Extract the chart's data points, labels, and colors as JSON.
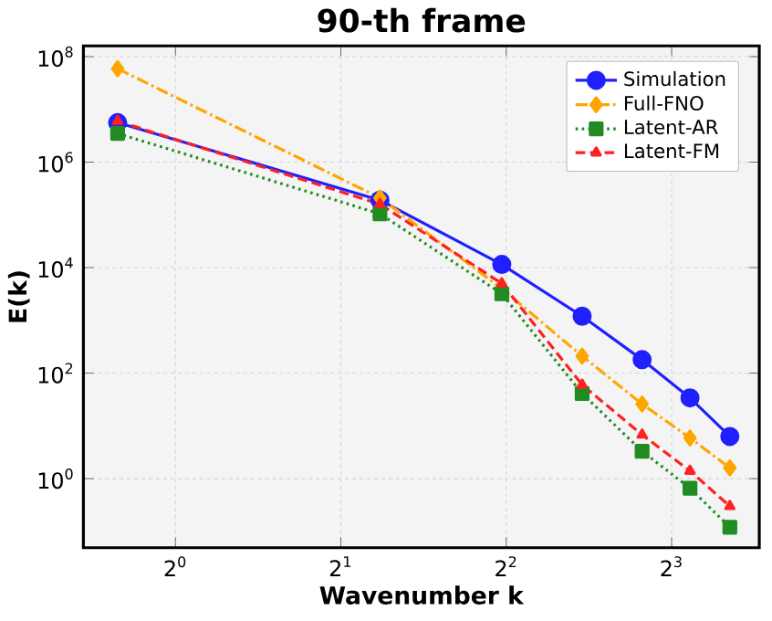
{
  "chart_data": {
    "type": "line",
    "title": "90-th frame",
    "xlabel": "Wavenumber k",
    "ylabel": "E(k)",
    "x": [
      0.785,
      2.356,
      3.927,
      5.498,
      7.069,
      8.639,
      10.21
    ],
    "series": [
      {
        "name": "Simulation",
        "color": "#1f1fff",
        "marker": "circle",
        "line_style": "solid",
        "values": [
          5600000,
          190000,
          11500,
          1200,
          180,
          34,
          6.3
        ]
      },
      {
        "name": "Full-FNO",
        "color": "#ffa500",
        "marker": "diamond",
        "line_style": "dashdot",
        "values": [
          59000000,
          210000,
          4000,
          210,
          26,
          5.9,
          1.6
        ]
      },
      {
        "name": "Latent-AR",
        "color": "#228b22",
        "marker": "square",
        "line_style": "dotted",
        "values": [
          3500000,
          105000,
          3200,
          41,
          3.3,
          0.66,
          0.12
        ]
      },
      {
        "name": "Latent-FM",
        "color": "#ff2020",
        "marker": "triangle",
        "line_style": "dashed",
        "values": [
          6000000,
          160000,
          5000,
          60,
          6.8,
          1.4,
          0.3
        ]
      }
    ],
    "log": "xy",
    "xlim": [
      0.68,
      11.55
    ],
    "ylim": [
      0.049,
      160000000
    ],
    "xticks": [
      {
        "value": 1,
        "label": "2$^{0}$"
      },
      {
        "value": 2,
        "label": "2$^{1}$"
      },
      {
        "value": 4,
        "label": "2$^{2}$"
      },
      {
        "value": 8,
        "label": "2$^{3}$"
      }
    ],
    "yticks": [
      {
        "value": 1,
        "label": "10$^{0}$"
      },
      {
        "value": 100,
        "label": "10$^{2}$"
      },
      {
        "value": 10000,
        "label": "10$^{4}$"
      },
      {
        "value": 1000000,
        "label": "10$^{6}$"
      },
      {
        "value": 100000000,
        "label": "10$^{8}$"
      }
    ],
    "grid": true,
    "legend": "top right"
  }
}
